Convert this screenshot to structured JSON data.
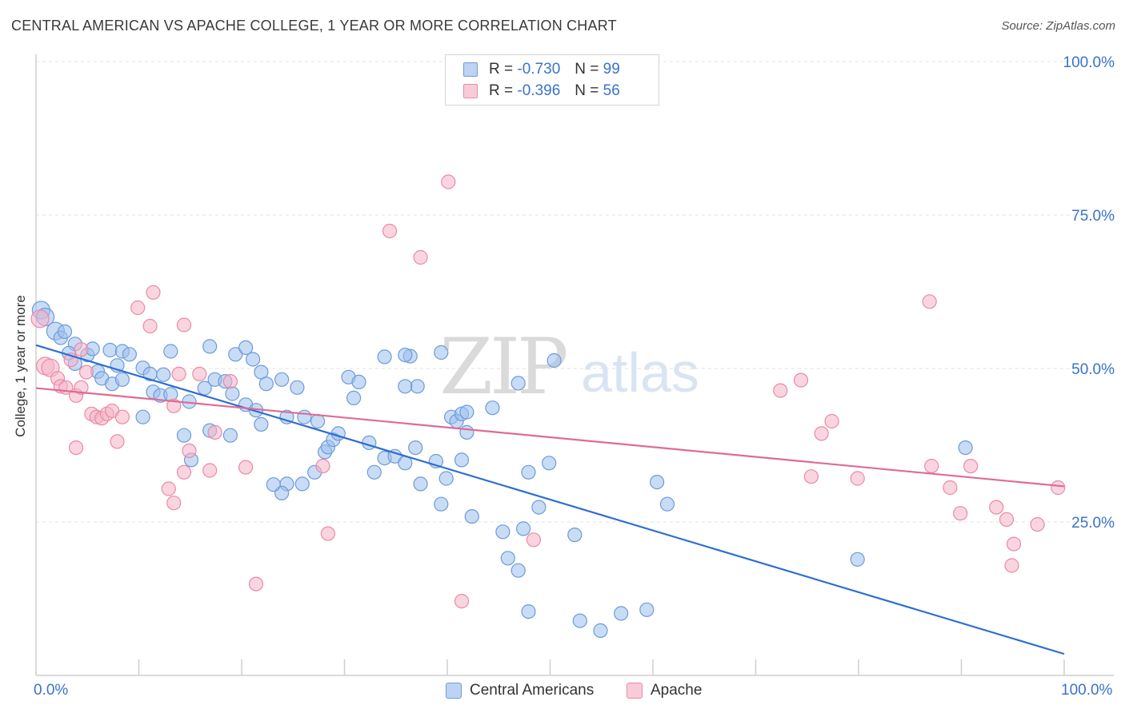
{
  "title": "CENTRAL AMERICAN VS APACHE COLLEGE, 1 YEAR OR MORE CORRELATION CHART",
  "source": "Source: ZipAtlas.com",
  "watermark": {
    "zip": "ZIP",
    "atlas": "atlas"
  },
  "legend": {
    "r_label": "R =",
    "n_label": "N =",
    "series": [
      {
        "r": "-0.730",
        "n": "99"
      },
      {
        "r": "-0.396",
        "n": "56"
      }
    ]
  },
  "chart_data": {
    "type": "scatter",
    "title": "CENTRAL AMERICAN VS APACHE COLLEGE, 1 YEAR OR MORE CORRELATION CHART",
    "xlabel": "",
    "ylabel": "College, 1 year or more",
    "xlim": [
      0,
      100
    ],
    "ylim": [
      0,
      100
    ],
    "x_tick_labels": [
      "0.0%",
      "100.0%"
    ],
    "y_tick_labels": [
      {
        "v": 100,
        "label": "100.0%"
      },
      {
        "v": 75,
        "label": "75.0%"
      },
      {
        "v": 50,
        "label": "50.0%"
      },
      {
        "v": 25,
        "label": "25.0%"
      }
    ],
    "grid": true,
    "legend_position": "top-center",
    "series": [
      {
        "name": "Central Americans",
        "color": "#9dbfee",
        "edge": "#6d9bd8",
        "trend_color": "#2d6fd0",
        "r": -0.73,
        "n": 99,
        "trend": [
          [
            0,
            53.8
          ],
          [
            100,
            3.5
          ]
        ],
        "points": [
          [
            0.5,
            59.5
          ],
          [
            0.9,
            58.4
          ],
          [
            1.9,
            56.1
          ],
          [
            2.4,
            55.0
          ],
          [
            2.8,
            56.0
          ],
          [
            3.8,
            54.0
          ],
          [
            3.2,
            52.5
          ],
          [
            5.0,
            52.2
          ],
          [
            3.8,
            50.8
          ],
          [
            5.5,
            53.2
          ],
          [
            7.2,
            53.0
          ],
          [
            8.4,
            52.8
          ],
          [
            9.1,
            52.3
          ],
          [
            7.9,
            50.5
          ],
          [
            10.4,
            50.1
          ],
          [
            11.1,
            49.1
          ],
          [
            12.4,
            49.0
          ],
          [
            6.0,
            49.5
          ],
          [
            6.4,
            48.4
          ],
          [
            7.4,
            47.5
          ],
          [
            8.4,
            48.2
          ],
          [
            11.4,
            46.2
          ],
          [
            12.1,
            45.6
          ],
          [
            13.1,
            45.8
          ],
          [
            14.9,
            44.6
          ],
          [
            16.4,
            46.8
          ],
          [
            17.4,
            48.2
          ],
          [
            18.4,
            47.9
          ],
          [
            19.1,
            45.9
          ],
          [
            20.4,
            44.1
          ],
          [
            21.4,
            43.2
          ],
          [
            16.9,
            53.6
          ],
          [
            13.1,
            52.8
          ],
          [
            19.4,
            52.3
          ],
          [
            20.4,
            53.4
          ],
          [
            21.1,
            51.5
          ],
          [
            21.9,
            49.4
          ],
          [
            22.4,
            47.5
          ],
          [
            23.9,
            48.2
          ],
          [
            24.4,
            42.1
          ],
          [
            25.4,
            46.9
          ],
          [
            26.1,
            42.1
          ],
          [
            27.4,
            41.4
          ],
          [
            28.1,
            36.4
          ],
          [
            28.4,
            37.2
          ],
          [
            28.9,
            38.4
          ],
          [
            29.4,
            39.4
          ],
          [
            27.1,
            33.1
          ],
          [
            25.9,
            31.2
          ],
          [
            24.4,
            31.2
          ],
          [
            23.9,
            29.7
          ],
          [
            23.1,
            31.1
          ],
          [
            10.4,
            42.1
          ],
          [
            14.4,
            39.1
          ],
          [
            15.1,
            35.1
          ],
          [
            16.9,
            39.9
          ],
          [
            18.9,
            39.1
          ],
          [
            21.9,
            40.9
          ],
          [
            30.4,
            48.6
          ],
          [
            31.4,
            47.8
          ],
          [
            30.9,
            45.2
          ],
          [
            33.9,
            51.9
          ],
          [
            32.4,
            37.9
          ],
          [
            33.9,
            35.4
          ],
          [
            32.9,
            33.1
          ],
          [
            34.9,
            35.7
          ],
          [
            35.9,
            34.6
          ],
          [
            36.9,
            37.1
          ],
          [
            37.4,
            31.2
          ],
          [
            38.9,
            34.9
          ],
          [
            39.9,
            32.1
          ],
          [
            39.4,
            27.9
          ],
          [
            36.4,
            52.0
          ],
          [
            37.1,
            47.1
          ],
          [
            35.9,
            52.2
          ],
          [
            35.9,
            47.1
          ],
          [
            39.4,
            52.6
          ],
          [
            40.4,
            42.1
          ],
          [
            40.9,
            41.4
          ],
          [
            41.4,
            42.6
          ],
          [
            41.9,
            42.9
          ],
          [
            41.9,
            39.6
          ],
          [
            41.4,
            35.1
          ],
          [
            42.4,
            25.9
          ],
          [
            44.4,
            43.6
          ],
          [
            46.9,
            47.6
          ],
          [
            47.9,
            33.1
          ],
          [
            48.9,
            27.4
          ],
          [
            45.4,
            23.4
          ],
          [
            47.4,
            23.9
          ],
          [
            46.9,
            17.1
          ],
          [
            45.9,
            19.1
          ],
          [
            49.9,
            34.6
          ],
          [
            52.4,
            22.9
          ],
          [
            47.9,
            10.4
          ],
          [
            52.9,
            8.9
          ],
          [
            54.9,
            7.3
          ],
          [
            56.9,
            10.1
          ],
          [
            59.4,
            10.7
          ],
          [
            60.4,
            31.5
          ],
          [
            61.4,
            27.9
          ],
          [
            79.9,
            18.9
          ],
          [
            90.4,
            37.1
          ],
          [
            50.4,
            51.3
          ]
        ]
      },
      {
        "name": "Apache",
        "color": "#f5b3c7",
        "edge": "#e88aa6",
        "trend_color": "#e06a94",
        "r": -0.396,
        "n": 56,
        "trend": [
          [
            0,
            46.8
          ],
          [
            100,
            30.8
          ]
        ],
        "points": [
          [
            0.4,
            58.1
          ],
          [
            0.9,
            50.4
          ],
          [
            1.4,
            50.1
          ],
          [
            2.1,
            48.4
          ],
          [
            2.4,
            47.1
          ],
          [
            2.9,
            46.9
          ],
          [
            3.4,
            51.4
          ],
          [
            3.9,
            45.6
          ],
          [
            4.4,
            46.9
          ],
          [
            4.9,
            49.4
          ],
          [
            4.4,
            53.1
          ],
          [
            5.4,
            42.6
          ],
          [
            5.9,
            42.1
          ],
          [
            6.4,
            41.9
          ],
          [
            6.9,
            42.6
          ],
          [
            7.4,
            43.1
          ],
          [
            8.4,
            42.1
          ],
          [
            7.9,
            38.1
          ],
          [
            3.9,
            37.1
          ],
          [
            9.9,
            59.9
          ],
          [
            11.4,
            62.4
          ],
          [
            11.1,
            56.9
          ],
          [
            13.9,
            49.1
          ],
          [
            13.4,
            43.9
          ],
          [
            14.4,
            57.1
          ],
          [
            14.9,
            36.6
          ],
          [
            15.9,
            49.1
          ],
          [
            16.9,
            33.4
          ],
          [
            17.4,
            39.6
          ],
          [
            12.9,
            30.4
          ],
          [
            13.4,
            28.1
          ],
          [
            14.4,
            33.1
          ],
          [
            18.9,
            47.9
          ],
          [
            20.4,
            33.9
          ],
          [
            21.4,
            14.9
          ],
          [
            28.4,
            23.1
          ],
          [
            27.9,
            34.1
          ],
          [
            34.4,
            72.4
          ],
          [
            37.4,
            68.1
          ],
          [
            40.1,
            80.4
          ],
          [
            41.4,
            12.1
          ],
          [
            48.4,
            22.1
          ],
          [
            72.4,
            46.4
          ],
          [
            74.4,
            48.1
          ],
          [
            75.4,
            32.4
          ],
          [
            76.4,
            39.4
          ],
          [
            77.4,
            41.4
          ],
          [
            79.9,
            32.1
          ],
          [
            86.9,
            60.9
          ],
          [
            87.1,
            34.1
          ],
          [
            88.9,
            30.6
          ],
          [
            89.9,
            26.4
          ],
          [
            90.9,
            34.1
          ],
          [
            93.4,
            27.4
          ],
          [
            94.4,
            25.4
          ],
          [
            95.1,
            21.4
          ],
          [
            94.9,
            17.9
          ],
          [
            97.4,
            24.6
          ],
          [
            99.4,
            30.6
          ]
        ]
      }
    ]
  },
  "bottom_legend": [
    "Central Americans",
    "Apache"
  ]
}
